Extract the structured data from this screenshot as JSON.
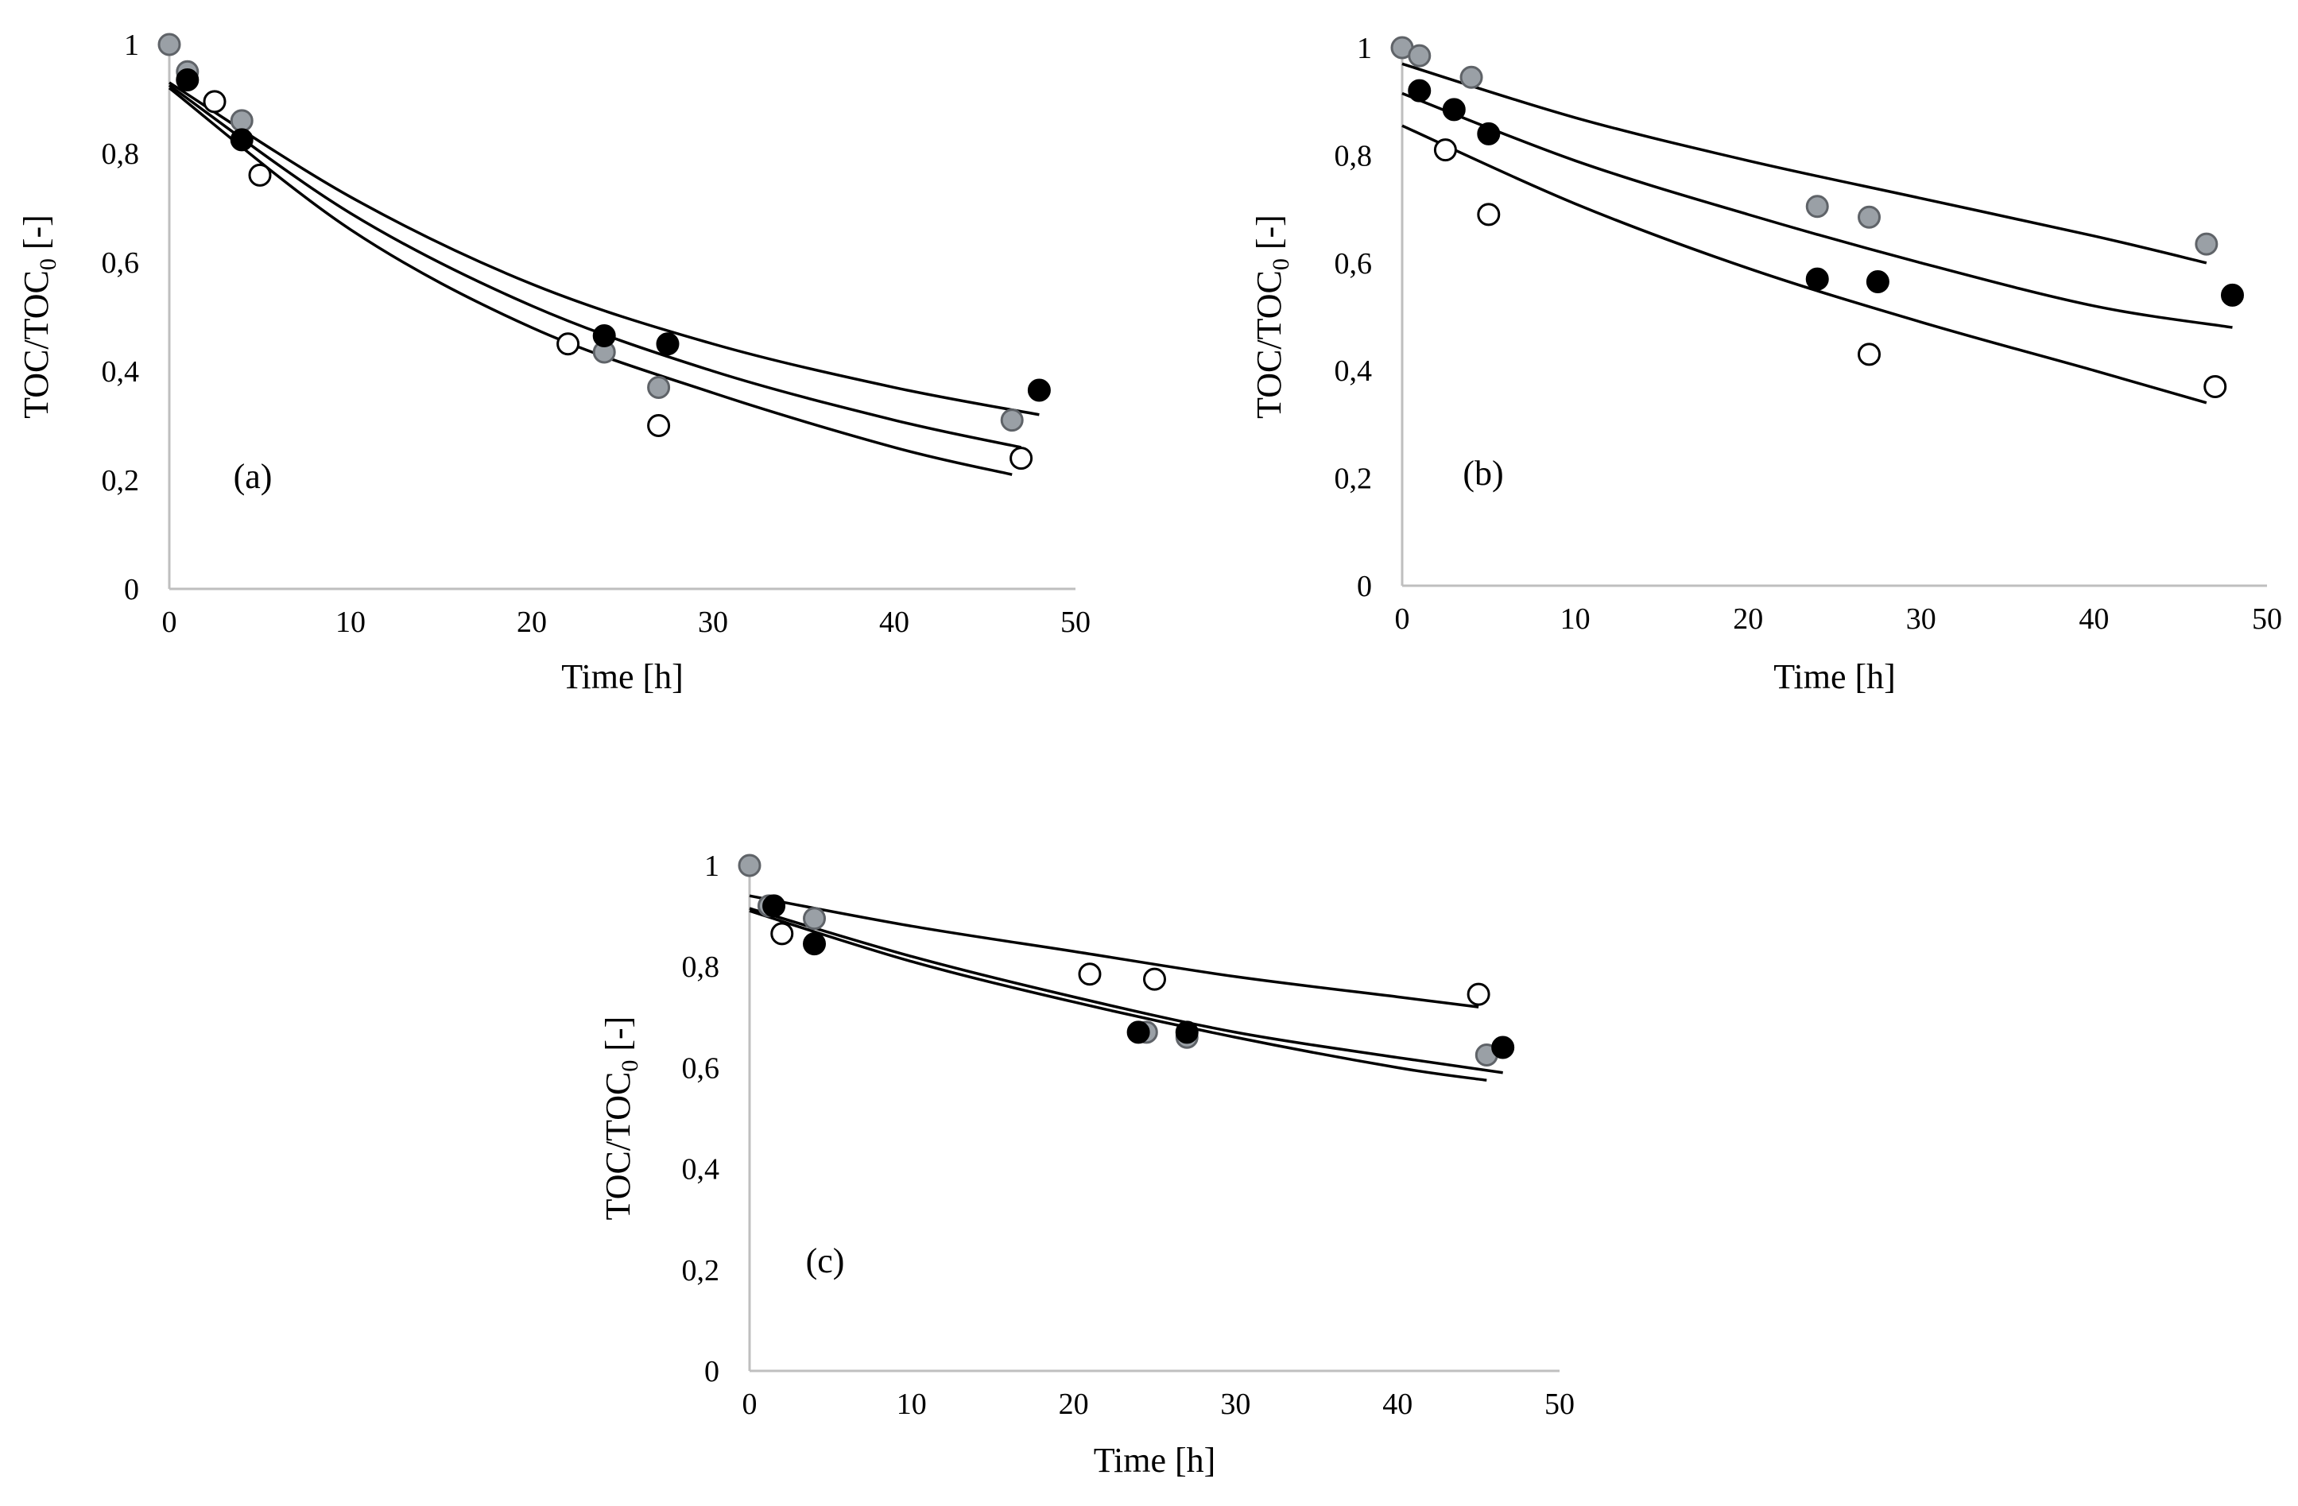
{
  "chart_data": [
    {
      "type": "scatter",
      "panel_label": "(a)",
      "xlabel": "Time [h]",
      "ylabel_main": "TOC/TOC",
      "ylabel_sub": "0",
      "ylabel_suffix": " [-]",
      "xlim": [
        0,
        50
      ],
      "ylim": [
        0,
        1
      ],
      "xticks": [
        "0",
        "10",
        "20",
        "30",
        "40",
        "50"
      ],
      "yticks": [
        "0",
        "0,2",
        "0,4",
        "0,6",
        "0,8",
        "1"
      ],
      "series": [
        {
          "name": "gray",
          "fill": "#9aa0a6",
          "stroke": "#5f6368",
          "points": [
            [
              0,
              1.0
            ],
            [
              1,
              0.95
            ],
            [
              4,
              0.86
            ],
            [
              24,
              0.435
            ],
            [
              27,
              0.37
            ],
            [
              46.5,
              0.31
            ]
          ]
        },
        {
          "name": "black",
          "fill": "#000000",
          "stroke": "#000000",
          "points": [
            [
              1,
              0.935
            ],
            [
              4,
              0.825
            ],
            [
              24,
              0.465
            ],
            [
              27.5,
              0.45
            ],
            [
              48,
              0.365
            ]
          ]
        },
        {
          "name": "white",
          "fill": "#ffffff",
          "stroke": "#000000",
          "points": [
            [
              2.5,
              0.895
            ],
            [
              5,
              0.76
            ],
            [
              22,
              0.45
            ],
            [
              27,
              0.3
            ],
            [
              47,
              0.24
            ]
          ]
        }
      ],
      "fits": [
        {
          "x": [
            0,
            10,
            20,
            30,
            40,
            48
          ],
          "y": [
            0.93,
            0.72,
            0.56,
            0.45,
            0.37,
            0.32
          ]
        },
        {
          "x": [
            0,
            10,
            20,
            30,
            40,
            47
          ],
          "y": [
            0.925,
            0.69,
            0.52,
            0.4,
            0.31,
            0.26
          ]
        },
        {
          "x": [
            0,
            10,
            20,
            30,
            40,
            46.5
          ],
          "y": [
            0.92,
            0.66,
            0.48,
            0.36,
            0.26,
            0.21
          ]
        }
      ]
    },
    {
      "type": "scatter",
      "panel_label": "(b)",
      "xlabel": "Time [h]",
      "ylabel_main": "TOC/TOC",
      "ylabel_sub": "0",
      "ylabel_suffix": " [-]",
      "xlim": [
        0,
        50
      ],
      "ylim": [
        0,
        1
      ],
      "xticks": [
        "0",
        "10",
        "20",
        "30",
        "40",
        "50"
      ],
      "yticks": [
        "0",
        "0,2",
        "0,4",
        "0,6",
        "0,8",
        "1"
      ],
      "series": [
        {
          "name": "gray",
          "fill": "#9aa0a6",
          "stroke": "#5f6368",
          "points": [
            [
              0,
              1.0
            ],
            [
              1,
              0.985
            ],
            [
              4,
              0.945
            ],
            [
              24,
              0.705
            ],
            [
              27,
              0.685
            ],
            [
              46.5,
              0.635
            ]
          ]
        },
        {
          "name": "black",
          "fill": "#000000",
          "stroke": "#000000",
          "points": [
            [
              1,
              0.92
            ],
            [
              3,
              0.885
            ],
            [
              5,
              0.84
            ],
            [
              24,
              0.57
            ],
            [
              27.5,
              0.565
            ],
            [
              48,
              0.54
            ]
          ]
        },
        {
          "name": "white",
          "fill": "#ffffff",
          "stroke": "#000000",
          "points": [
            [
              2.5,
              0.81
            ],
            [
              5,
              0.69
            ],
            [
              27,
              0.43
            ],
            [
              47,
              0.37
            ]
          ]
        }
      ],
      "fits": [
        {
          "x": [
            0,
            10,
            20,
            30,
            40,
            46.5
          ],
          "y": [
            0.97,
            0.87,
            0.79,
            0.72,
            0.65,
            0.6
          ]
        },
        {
          "x": [
            0,
            10,
            20,
            30,
            40,
            48
          ],
          "y": [
            0.915,
            0.79,
            0.69,
            0.6,
            0.52,
            0.48
          ]
        },
        {
          "x": [
            0,
            10,
            20,
            30,
            40,
            46.5
          ],
          "y": [
            0.855,
            0.71,
            0.59,
            0.49,
            0.4,
            0.34
          ]
        }
      ]
    },
    {
      "type": "scatter",
      "panel_label": "(c)",
      "xlabel": "Time [h]",
      "ylabel_main": "TOC/TOC",
      "ylabel_sub": "0",
      "ylabel_suffix": " [-]",
      "xlim": [
        0,
        50
      ],
      "ylim": [
        0,
        1
      ],
      "xticks": [
        "0",
        "10",
        "20",
        "30",
        "40",
        "50"
      ],
      "yticks": [
        "0",
        "0,2",
        "0,4",
        "0,6",
        "0,8",
        "1"
      ],
      "series": [
        {
          "name": "gray",
          "fill": "#9aa0a6",
          "stroke": "#5f6368",
          "points": [
            [
              0,
              1.0
            ],
            [
              1.2,
              0.92
            ],
            [
              4,
              0.895
            ],
            [
              24.5,
              0.67
            ],
            [
              27,
              0.66
            ],
            [
              45.5,
              0.625
            ]
          ]
        },
        {
          "name": "black",
          "fill": "#000000",
          "stroke": "#000000",
          "points": [
            [
              1.5,
              0.92
            ],
            [
              4,
              0.845
            ],
            [
              24,
              0.67
            ],
            [
              27,
              0.67
            ],
            [
              46.5,
              0.64
            ]
          ]
        },
        {
          "name": "white",
          "fill": "#ffffff",
          "stroke": "#000000",
          "points": [
            [
              2,
              0.865
            ],
            [
              21,
              0.785
            ],
            [
              25,
              0.775
            ],
            [
              45,
              0.745
            ]
          ]
        }
      ],
      "fits": [
        {
          "x": [
            0,
            10,
            20,
            30,
            40,
            45
          ],
          "y": [
            0.94,
            0.88,
            0.83,
            0.78,
            0.74,
            0.72
          ]
        },
        {
          "x": [
            0,
            10,
            20,
            30,
            40,
            46.5
          ],
          "y": [
            0.915,
            0.82,
            0.74,
            0.67,
            0.62,
            0.59
          ]
        },
        {
          "x": [
            0,
            10,
            20,
            30,
            40,
            45.5
          ],
          "y": [
            0.91,
            0.81,
            0.73,
            0.66,
            0.6,
            0.575
          ]
        }
      ]
    }
  ]
}
